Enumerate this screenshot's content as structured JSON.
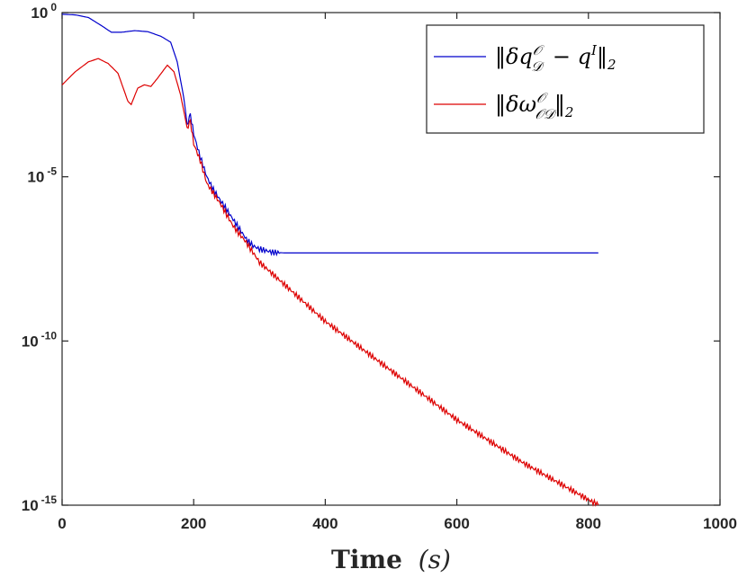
{
  "chart_data": {
    "type": "line",
    "xlabel_main": "Time",
    "xlabel_var": "(s)",
    "ylabel": "",
    "xlim": [
      0,
      1000
    ],
    "ylim_exp": [
      -15,
      0
    ],
    "yscale": "log",
    "grid": false,
    "legend_position": "top-right",
    "x_ticks": [
      "0",
      "200",
      "400",
      "600",
      "800",
      "1000"
    ],
    "y_ticks": [
      {
        "base": "10",
        "exp": "0"
      },
      {
        "base": "10",
        "exp": "-5"
      },
      {
        "base": "10",
        "exp": "-10"
      },
      {
        "base": "10",
        "exp": "-15"
      }
    ],
    "series": [
      {
        "name": "‖δq_D^O − q^I‖₂",
        "color": "#0000cc",
        "points_log10": [
          [
            0,
            -0.05
          ],
          [
            20,
            -0.07
          ],
          [
            40,
            -0.15
          ],
          [
            60,
            -0.4
          ],
          [
            75,
            -0.6
          ],
          [
            90,
            -0.6
          ],
          [
            110,
            -0.55
          ],
          [
            130,
            -0.58
          ],
          [
            150,
            -0.72
          ],
          [
            165,
            -0.9
          ],
          [
            175,
            -1.5
          ],
          [
            185,
            -2.6
          ],
          [
            190,
            -3.4
          ],
          [
            195,
            -3.1
          ],
          [
            200,
            -3.7
          ],
          [
            210,
            -4.4
          ],
          [
            220,
            -5.0
          ],
          [
            230,
            -5.4
          ],
          [
            240,
            -5.7
          ],
          [
            250,
            -6.0
          ],
          [
            260,
            -6.3
          ],
          [
            270,
            -6.6
          ],
          [
            280,
            -6.9
          ],
          [
            290,
            -7.1
          ],
          [
            300,
            -7.2
          ],
          [
            320,
            -7.3
          ],
          [
            340,
            -7.32
          ],
          [
            815,
            -7.32
          ]
        ]
      },
      {
        "name": "‖δω_OD^O‖₂",
        "color": "#dd0000",
        "points_log10": [
          [
            0,
            -2.2
          ],
          [
            20,
            -1.8
          ],
          [
            40,
            -1.5
          ],
          [
            55,
            -1.4
          ],
          [
            70,
            -1.55
          ],
          [
            85,
            -1.85
          ],
          [
            100,
            -2.7
          ],
          [
            105,
            -2.8
          ],
          [
            115,
            -2.3
          ],
          [
            125,
            -2.2
          ],
          [
            135,
            -2.25
          ],
          [
            145,
            -2.0
          ],
          [
            160,
            -1.6
          ],
          [
            170,
            -1.8
          ],
          [
            180,
            -2.5
          ],
          [
            190,
            -3.5
          ],
          [
            195,
            -3.3
          ],
          [
            200,
            -4.0
          ],
          [
            210,
            -4.5
          ],
          [
            220,
            -5.2
          ],
          [
            240,
            -5.8
          ],
          [
            260,
            -6.5
          ],
          [
            280,
            -7.0
          ],
          [
            300,
            -7.6
          ],
          [
            400,
            -9.4
          ],
          [
            500,
            -10.9
          ],
          [
            600,
            -12.4
          ],
          [
            700,
            -13.7
          ],
          [
            815,
            -15.0
          ]
        ]
      }
    ]
  }
}
